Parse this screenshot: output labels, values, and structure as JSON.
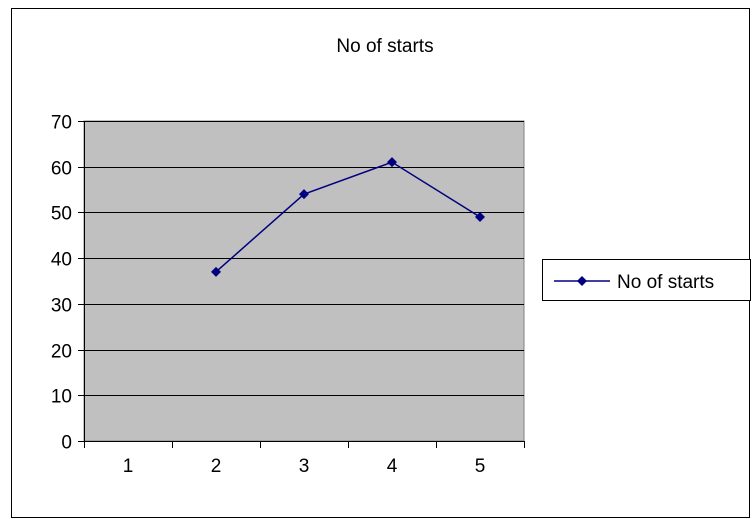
{
  "chart_data": {
    "type": "line",
    "title": "No of starts",
    "xlabel": "",
    "ylabel": "",
    "categories": [
      "1",
      "2",
      "3",
      "4",
      "5"
    ],
    "series": [
      {
        "name": "No of starts",
        "values": [
          null,
          37,
          54,
          61,
          49
        ]
      }
    ],
    "ylim": [
      0,
      70
    ],
    "yticks": [
      0,
      10,
      20,
      30,
      40,
      50,
      60,
      70
    ],
    "grid": true,
    "legend": "right",
    "colors": {
      "plot_background": "#c0c0c0",
      "series": "#000080",
      "gridline": "#000000",
      "frame": "#000000"
    }
  }
}
